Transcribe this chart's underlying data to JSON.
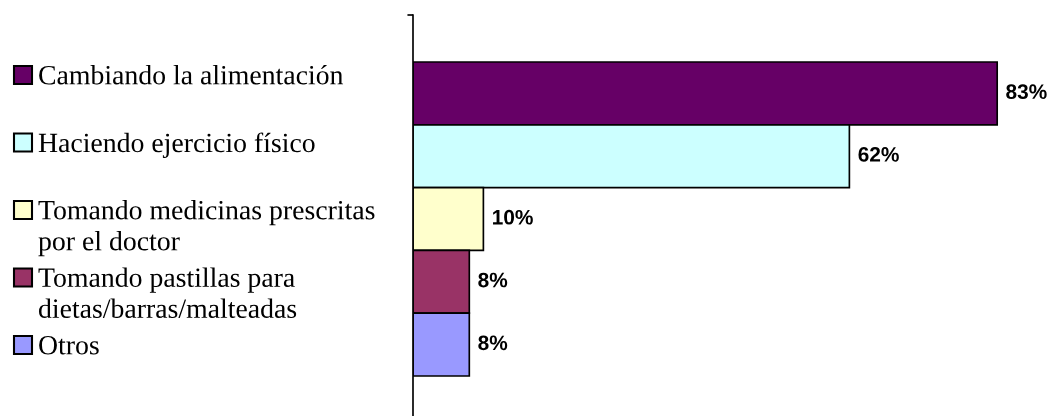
{
  "chart_data": {
    "type": "bar",
    "orientation": "horizontal",
    "categories": [
      "Cambiando la alimentación",
      "Haciendo ejercicio físico",
      "Tomando medicinas prescritas por el doctor",
      "Tomando pastillas para dietas/barras/malteadas",
      "Otros"
    ],
    "values": [
      83,
      62,
      10,
      8,
      8
    ],
    "colors": [
      "#660066",
      "#ccffff",
      "#ffffcc",
      "#993366",
      "#9999ff"
    ],
    "value_labels": [
      "83%",
      "62%",
      "10%",
      "8%",
      "8%"
    ],
    "tick_labels": false
  }
}
